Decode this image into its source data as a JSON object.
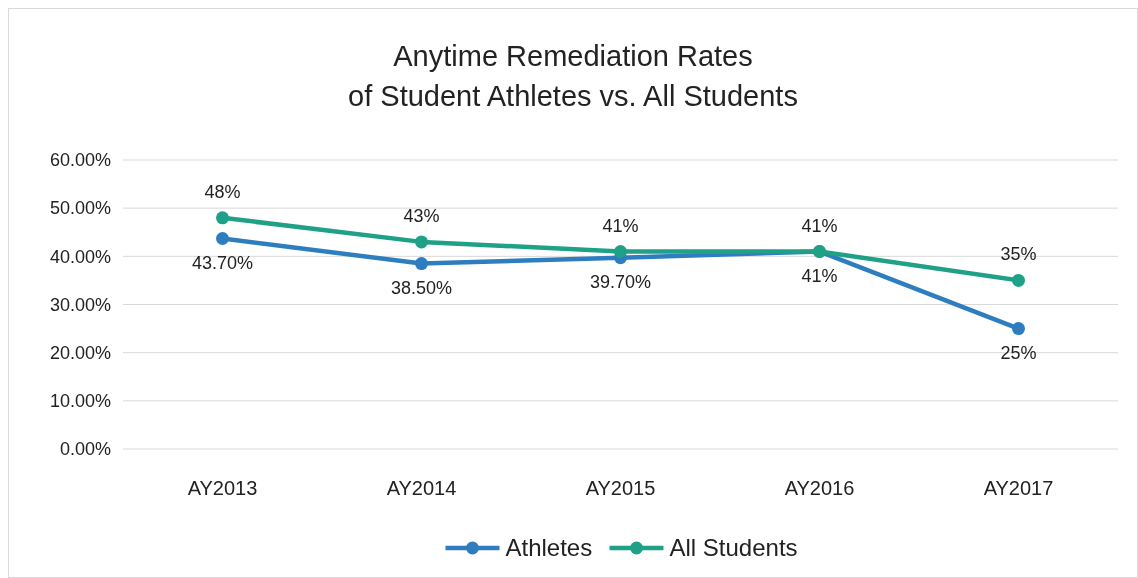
{
  "chart_data": {
    "type": "line",
    "title": "Anytime Remediation Rates\nof Student Athletes vs. All Students",
    "categories": [
      "AY2013",
      "AY2014",
      "AY2015",
      "AY2016",
      "AY2017"
    ],
    "series": [
      {
        "name": "Athletes",
        "color": "#2e7ebf",
        "values": [
          43.7,
          38.5,
          39.7,
          41,
          25
        ],
        "value_labels": [
          "43.70%",
          "38.50%",
          "39.70%",
          "41%",
          "25%"
        ]
      },
      {
        "name": "All Students",
        "color": "#1fa187",
        "values": [
          48,
          43,
          41,
          41,
          35
        ],
        "value_labels": [
          "48%",
          "43%",
          "41%",
          "41%",
          "35%"
        ]
      }
    ],
    "ylim": [
      0,
      60
    ],
    "yticks": [
      {
        "value": 0,
        "label": "0.00%"
      },
      {
        "value": 10,
        "label": "10.00%"
      },
      {
        "value": 20,
        "label": "20.00%"
      },
      {
        "value": 30,
        "label": "30.00%"
      },
      {
        "value": 40,
        "label": "40.00%"
      },
      {
        "value": 50,
        "label": "50.00%"
      },
      {
        "value": 60,
        "label": "60.00%"
      }
    ],
    "grid": "y",
    "legend": "bottom",
    "marker": "circle",
    "line_style": "solid"
  }
}
